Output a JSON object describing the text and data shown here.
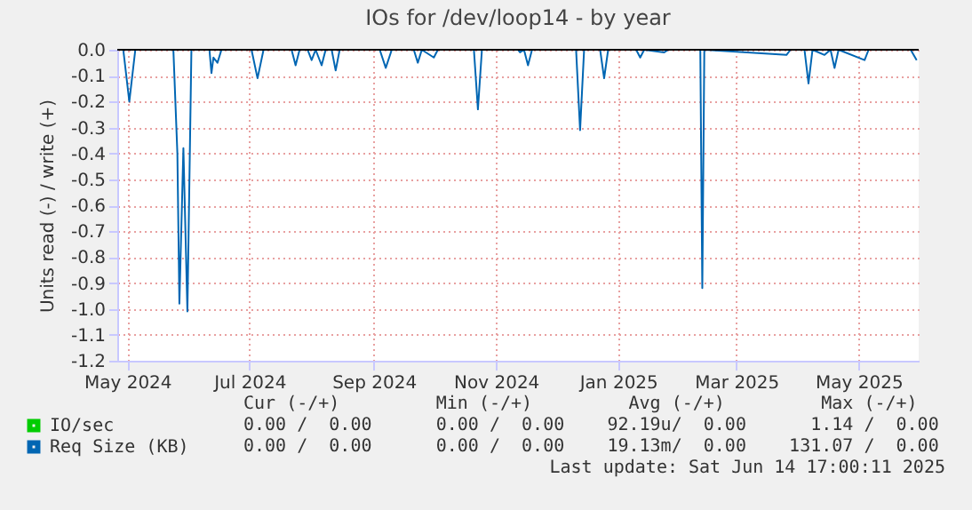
{
  "chart_data": {
    "type": "line",
    "title": "IOs for /dev/loop14 - by year",
    "ylabel": "Units read (-) / write (+)",
    "x": [
      "2024-04-26",
      "2024-04-29",
      "2024-05-02",
      "2024-05-05",
      "2024-05-24",
      "2024-05-26",
      "2024-05-27",
      "2024-05-29",
      "2024-05-31",
      "2024-06-02",
      "2024-06-11",
      "2024-06-12",
      "2024-06-13",
      "2024-06-15",
      "2024-06-17",
      "2024-07-02",
      "2024-07-05",
      "2024-07-08",
      "2024-07-22",
      "2024-07-24",
      "2024-07-26",
      "2024-07-30",
      "2024-08-01",
      "2024-08-03",
      "2024-08-06",
      "2024-08-08",
      "2024-08-11",
      "2024-08-13",
      "2024-08-15",
      "2024-09-04",
      "2024-09-07",
      "2024-09-10",
      "2024-09-21",
      "2024-09-23",
      "2024-09-25",
      "2024-10-01",
      "2024-10-03",
      "2024-10-21",
      "2024-10-23",
      "2024-10-25",
      "2024-11-12",
      "2024-11-13",
      "2024-11-15",
      "2024-11-17",
      "2024-11-19",
      "2024-12-11",
      "2024-12-13",
      "2024-12-15",
      "2024-12-23",
      "2024-12-25",
      "2024-12-27",
      "2025-01-10",
      "2025-01-12",
      "2025-01-14",
      "2025-01-24",
      "2025-01-26",
      "2025-02-11",
      "2025-02-12",
      "2025-02-13",
      "2025-03-26",
      "2025-03-28",
      "2025-04-04",
      "2025-04-06",
      "2025-04-08",
      "2025-04-14",
      "2025-04-17",
      "2025-04-19",
      "2025-04-21",
      "2025-05-04",
      "2025-05-06",
      "2025-05-27",
      "2025-05-30"
    ],
    "series": [
      {
        "name": "IO/sec",
        "color": "#00cc00",
        "values": [
          null,
          null,
          null,
          null,
          null,
          null,
          null,
          null,
          null,
          null,
          null,
          null,
          null,
          null,
          null,
          null,
          null,
          null,
          null,
          null,
          null,
          null,
          null,
          null,
          null,
          null,
          null,
          null,
          null,
          null,
          null,
          null,
          null,
          null,
          null,
          null,
          null,
          null,
          null,
          null,
          null,
          null,
          null,
          null,
          null,
          null,
          null,
          null,
          null,
          null,
          null,
          null,
          null,
          null,
          null,
          null,
          null,
          null,
          null,
          null,
          null,
          null,
          null,
          null,
          null,
          null,
          null,
          null,
          null,
          null,
          null,
          null
        ]
      },
      {
        "name": "Req Size (KB)",
        "color": "#0066b3",
        "values": [
          0,
          0,
          -0.2,
          0,
          0,
          -0.4,
          -0.98,
          -0.38,
          -1.01,
          0,
          0,
          -0.09,
          -0.03,
          -0.05,
          0,
          0,
          -0.11,
          0,
          0,
          -0.06,
          0,
          0,
          -0.04,
          0,
          -0.06,
          0,
          0,
          -0.08,
          0,
          0,
          -0.07,
          0,
          0,
          -0.05,
          0,
          -0.03,
          0,
          0,
          -0.23,
          0,
          0,
          -0.01,
          0,
          -0.06,
          0,
          0,
          -0.31,
          0,
          0,
          -0.11,
          0,
          0,
          -0.03,
          0,
          -0.01,
          0,
          0,
          -0.92,
          0,
          -0.02,
          0,
          0,
          -0.13,
          0,
          -0.02,
          0,
          -0.07,
          0,
          -0.04,
          0,
          0,
          -0.04
        ]
      }
    ],
    "xlim": [
      "2024-04-26",
      "2025-05-31"
    ],
    "xticks": [
      {
        "value": "2024-05-01",
        "label": "May 2024"
      },
      {
        "value": "2024-07-01",
        "label": "Jul 2024"
      },
      {
        "value": "2024-09-01",
        "label": "Sep 2024"
      },
      {
        "value": "2024-11-01",
        "label": "Nov 2024"
      },
      {
        "value": "2025-01-01",
        "label": "Jan 2025"
      },
      {
        "value": "2025-03-01",
        "label": "Mar 2025"
      },
      {
        "value": "2025-05-01",
        "label": "May 2025"
      }
    ],
    "ylim": [
      -1.2,
      0
    ],
    "yticks": [
      {
        "value": 0,
        "label": "0.0"
      },
      -0.1,
      -0.2,
      -0.3,
      -0.4,
      -0.5,
      -0.6,
      -0.7,
      -0.8,
      -0.9,
      {
        "value": -1,
        "label": "-1.0"
      },
      -1.1,
      -1.2
    ],
    "grid": true,
    "legend": "bottom left",
    "ref_lines": [
      {
        "axis": "y",
        "value": 0,
        "color": "#000000"
      }
    ],
    "annotations": [
      "  Cur (-/+)         Min (-/+)         Avg (-/+)         Max (-/+)",
      "0.00 /  0.00      0.00 /  0.00    92.19u/  0.00      1.14 /  0.00",
      "0.00 /  0.00      0.00 /  0.00    19.13m/  0.00    131.07 /  0.00",
      "Last update: Sat Jun 14 17:00:11 2025"
    ]
  }
}
